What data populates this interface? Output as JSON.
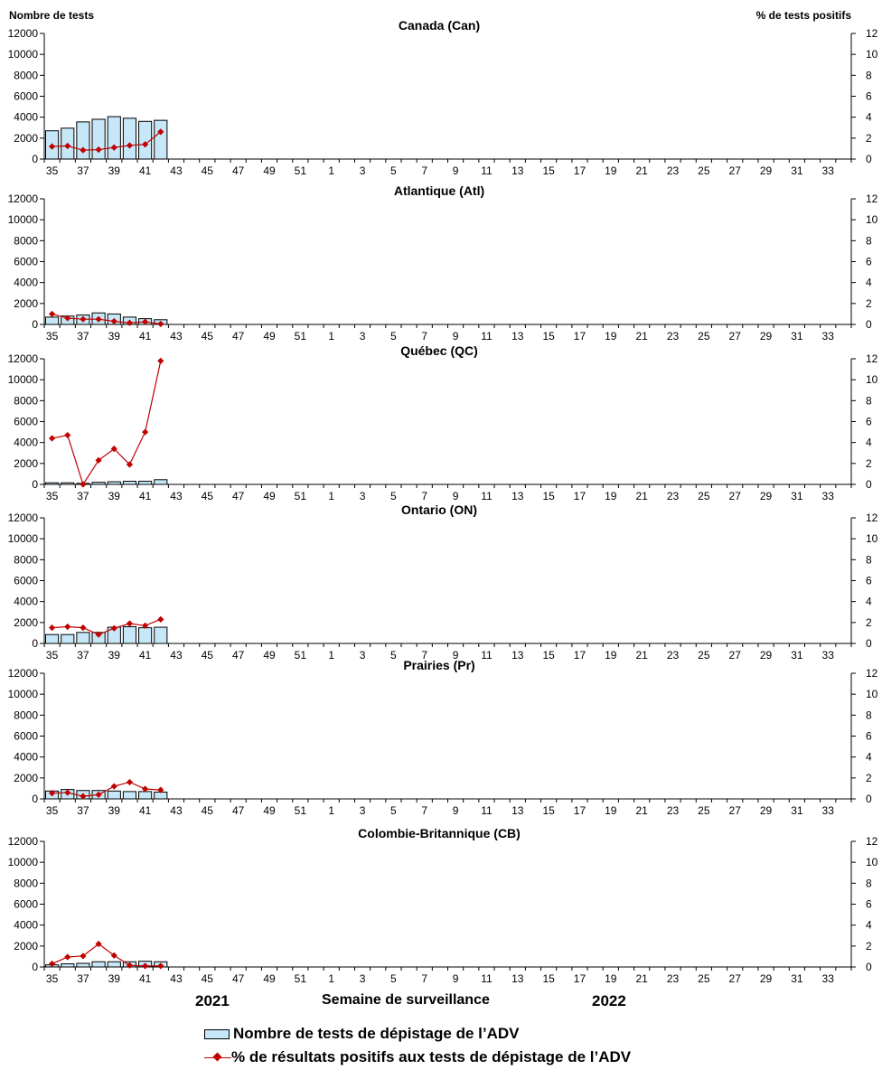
{
  "y_left_title": "Nombre de tests",
  "y_right_title": "% de tests positifs",
  "x_axis_title": "Semaine de surveillance",
  "year_left": "2021",
  "year_right": "2022",
  "legend": {
    "bars": "Nombre de tests de dépistage de l’ADV",
    "line": "% de résultats positifs aux tests de dépistage de l’ADV"
  },
  "colors": {
    "bar_fill": "#c6e7f7",
    "bar_stroke": "#000000",
    "line": "#c00000"
  },
  "chart_data": [
    {
      "type": "bar+line",
      "title": "Canada (Can)",
      "weeks": [
        "35",
        "36",
        "37",
        "38",
        "39",
        "40",
        "41",
        "42",
        "43",
        "44",
        "45",
        "46",
        "47",
        "48",
        "49",
        "50",
        "51",
        "52",
        "1",
        "2",
        "3",
        "4",
        "5",
        "6",
        "7",
        "8",
        "9",
        "10",
        "11",
        "12",
        "13",
        "14",
        "15",
        "16",
        "17",
        "18",
        "19",
        "20",
        "21",
        "22",
        "23",
        "24",
        "25",
        "26",
        "27",
        "28",
        "29",
        "30",
        "31",
        "32",
        "33",
        "34"
      ],
      "x_tick_labels": [
        "35",
        "37",
        "39",
        "41",
        "43",
        "45",
        "47",
        "49",
        "51",
        "1",
        "3",
        "5",
        "7",
        "9",
        "11",
        "13",
        "15",
        "17",
        "19",
        "21",
        "23",
        "25",
        "27",
        "29",
        "31",
        "33"
      ],
      "left_ylim": [
        0,
        12000
      ],
      "left_yticks": [
        0,
        2000,
        4000,
        6000,
        8000,
        10000,
        12000
      ],
      "right_ylim": [
        0,
        12
      ],
      "right_yticks": [
        0,
        2,
        4,
        6,
        8,
        10,
        12
      ],
      "tests": [
        2700,
        2950,
        3550,
        3800,
        4050,
        3900,
        3600,
        3700
      ],
      "pct_positive": [
        1.2,
        1.25,
        0.85,
        0.9,
        1.1,
        1.3,
        1.4,
        2.6
      ]
    },
    {
      "type": "bar+line",
      "title": "Atlantique (Atl)",
      "left_ylim": [
        0,
        12000
      ],
      "right_ylim": [
        0,
        12
      ],
      "tests": [
        700,
        800,
        900,
        1100,
        1000,
        700,
        550,
        450
      ],
      "pct_positive": [
        1.0,
        0.6,
        0.5,
        0.5,
        0.3,
        0.15,
        0.25,
        0.05
      ]
    },
    {
      "type": "bar+line",
      "title": "Québec (QC)",
      "left_ylim": [
        0,
        12000
      ],
      "right_ylim": [
        0,
        12
      ],
      "tests": [
        150,
        150,
        100,
        200,
        250,
        300,
        300,
        450
      ],
      "pct_positive": [
        4.4,
        4.7,
        0.0,
        2.3,
        3.4,
        1.9,
        5.0,
        11.8
      ]
    },
    {
      "type": "bar+line",
      "title": "Ontario (ON)",
      "left_ylim": [
        0,
        12000
      ],
      "right_ylim": [
        0,
        12
      ],
      "tests": [
        850,
        850,
        1050,
        1050,
        1550,
        1600,
        1500,
        1550
      ],
      "pct_positive": [
        1.5,
        1.6,
        1.5,
        0.85,
        1.45,
        1.9,
        1.7,
        2.3
      ]
    },
    {
      "type": "bar+line",
      "title": "Prairies (Pr)",
      "left_ylim": [
        0,
        12000
      ],
      "right_ylim": [
        0,
        12
      ],
      "tests": [
        750,
        900,
        800,
        800,
        750,
        700,
        700,
        650
      ],
      "pct_positive": [
        0.55,
        0.6,
        0.25,
        0.4,
        1.2,
        1.6,
        0.95,
        0.85
      ]
    },
    {
      "type": "bar+line",
      "title": "Colombie-Britannique (CB)",
      "left_ylim": [
        0,
        12000
      ],
      "right_ylim": [
        0,
        12
      ],
      "tests": [
        200,
        300,
        350,
        500,
        500,
        500,
        550,
        500
      ],
      "pct_positive": [
        0.3,
        0.95,
        1.05,
        2.2,
        1.1,
        0.15,
        0.1,
        0.1
      ]
    }
  ]
}
